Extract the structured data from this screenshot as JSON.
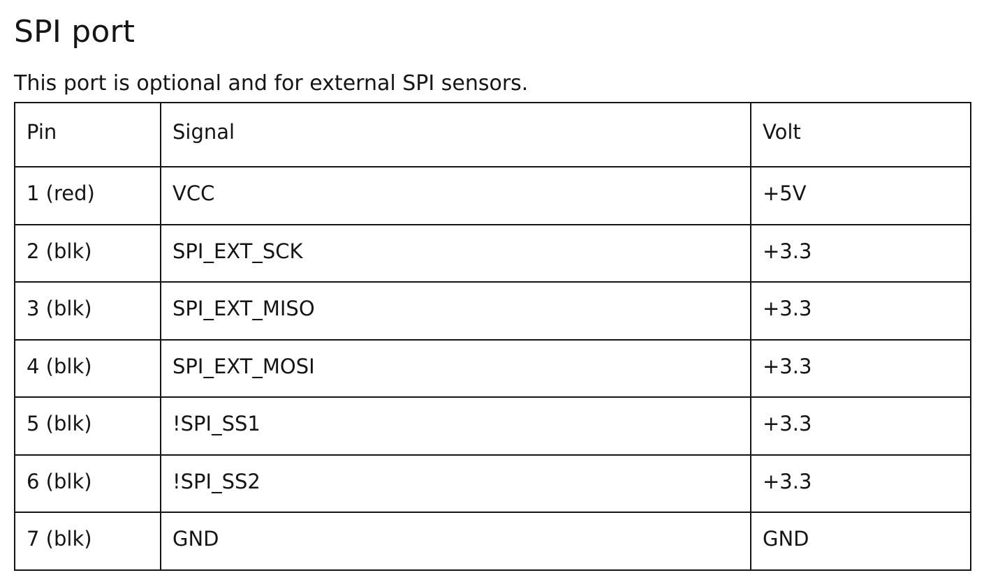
{
  "heading": "SPI port",
  "description": "This port is optional and for external SPI sensors.",
  "table": {
    "headers": [
      "Pin",
      "Signal",
      "Volt"
    ],
    "rows": [
      [
        "1 (red)",
        "VCC",
        "+5V"
      ],
      [
        "2 (blk)",
        "SPI_EXT_SCK",
        "+3.3"
      ],
      [
        "3 (blk)",
        "SPI_EXT_MISO",
        "+3.3"
      ],
      [
        "4 (blk)",
        "SPI_EXT_MOSI",
        "+3.3"
      ],
      [
        "5 (blk)",
        "!SPI_SS1",
        "+3.3"
      ],
      [
        "6 (blk)",
        "!SPI_SS2",
        "+3.3"
      ],
      [
        "7 (blk)",
        "GND",
        "GND"
      ]
    ]
  }
}
